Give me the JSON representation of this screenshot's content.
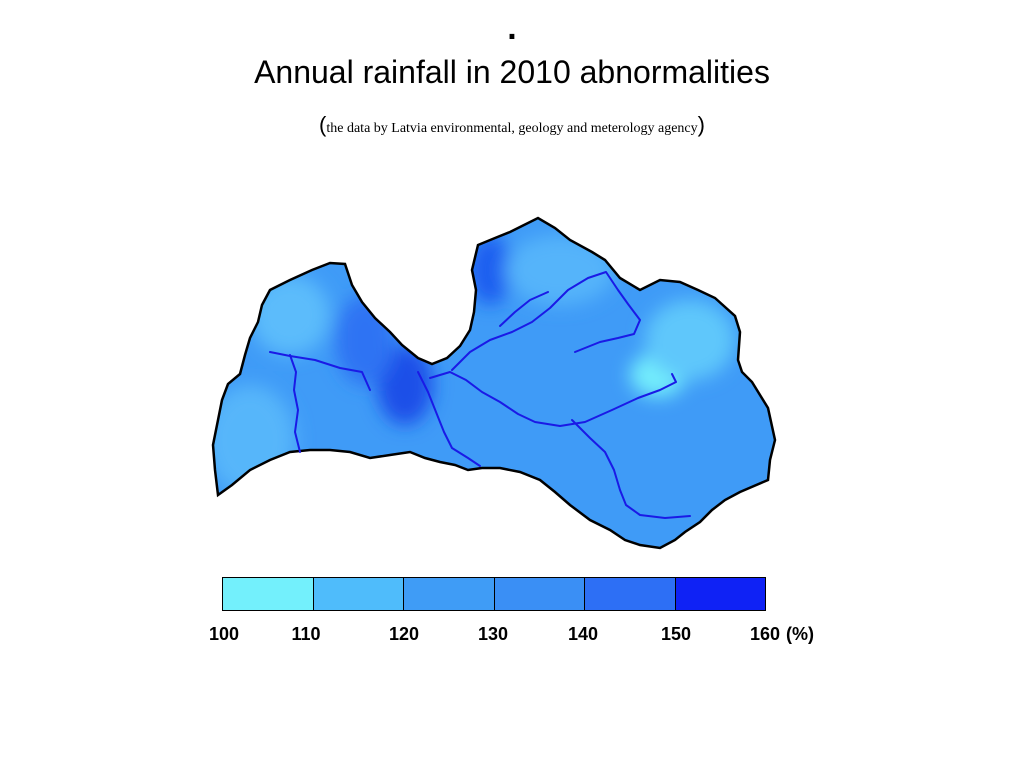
{
  "slide": {
    "bullet_mark": ".",
    "title": "Annual rainfall in 2010 abnormalities",
    "source_open": "(",
    "source_text": "the data by Latvia environmental, geology and meterology agency",
    "source_close": ")"
  },
  "map": {
    "land_color": "#3f9bf7",
    "border_color": "#000000",
    "river_color": "#1a1ae6",
    "zones": [
      {
        "name": "north-coast-light",
        "color": "#5bbcfb"
      },
      {
        "name": "west-light",
        "color": "#56b6fa"
      },
      {
        "name": "gulf-dark",
        "color": "#1a4fe8"
      },
      {
        "name": "gulf-mid",
        "color": "#2d73f3"
      },
      {
        "name": "northeast-dark",
        "color": "#1f5ff0"
      },
      {
        "name": "north-light",
        "color": "#55b4fa"
      },
      {
        "name": "east-min",
        "color": "#73eefc"
      },
      {
        "name": "east-light",
        "color": "#5fc7fb"
      }
    ]
  },
  "legend": {
    "colors": [
      "#73f0fc",
      "#4fbcfb",
      "#3f9cf6",
      "#3a8ff5",
      "#2d6ff5",
      "#0f22f5"
    ],
    "labels": [
      "100",
      "110",
      "120",
      "130",
      "140",
      "150",
      "160"
    ],
    "unit": "(%)"
  }
}
